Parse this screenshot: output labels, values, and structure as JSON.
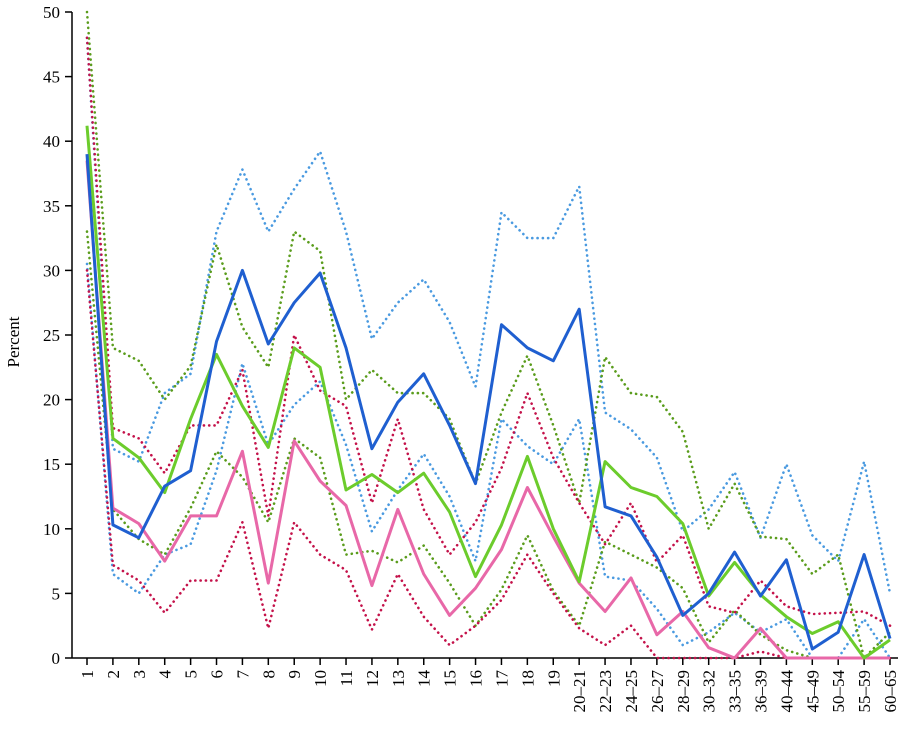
{
  "chart_data": {
    "type": "line",
    "title": "",
    "xlabel": "",
    "ylabel": "Percent",
    "ylim": [
      0,
      50
    ],
    "yticks": [
      0,
      5,
      10,
      15,
      20,
      25,
      30,
      35,
      40,
      45,
      50
    ],
    "categories": [
      "1",
      "2",
      "3",
      "4",
      "5",
      "6",
      "7",
      "8",
      "9",
      "10",
      "11",
      "12",
      "13",
      "14",
      "15",
      "16",
      "17",
      "18",
      "19",
      "20–21",
      "22–23",
      "24–25",
      "26–27",
      "28–29",
      "30–32",
      "33–35",
      "36–39",
      "40–44",
      "45–49",
      "50–54",
      "55–59",
      "60–65"
    ],
    "grid": false,
    "legend": "none",
    "series": [
      {
        "color": "#1f5fd0",
        "style": "solid",
        "values": [
          39,
          10.3,
          9.3,
          13.3,
          14.5,
          24.5,
          30,
          24.3,
          27.5,
          29.8,
          24,
          16.2,
          19.8,
          22,
          18,
          13.5,
          25.8,
          24,
          23,
          27,
          11.7,
          11,
          7.8,
          3.3,
          5,
          8.2,
          4.8,
          7.6,
          0.7,
          2,
          8,
          1.5
        ]
      },
      {
        "color": "#6ccc2c",
        "style": "solid",
        "values": [
          41.2,
          17,
          15.5,
          12.8,
          18.5,
          23.5,
          19.5,
          16.3,
          24,
          22.5,
          13,
          14.2,
          12.8,
          14.3,
          11.3,
          6.3,
          10.3,
          15.6,
          10,
          5.9,
          15.2,
          13.2,
          12.5,
          10.4,
          4.8,
          7.4,
          4.9,
          3.2,
          1.9,
          2.8,
          0,
          1.4
        ]
      },
      {
        "color": "#e868a8",
        "style": "solid",
        "values": [
          38.5,
          11.6,
          10.4,
          7.5,
          11,
          11,
          16,
          5.8,
          16.8,
          13.7,
          11.8,
          5.6,
          11.5,
          6.5,
          3.3,
          5.4,
          8.4,
          13.2,
          9.4,
          5.8,
          3.6,
          6.2,
          1.8,
          3.6,
          0.8,
          0,
          2.3,
          0,
          0,
          0,
          0,
          0
        ]
      },
      {
        "color": "#4a9ae0",
        "style": "dotted",
        "values": [
          48,
          16.2,
          15.2,
          20.5,
          22,
          33,
          37.8,
          33,
          36.3,
          39.2,
          33,
          24.7,
          27.5,
          29.3,
          26,
          21,
          34.5,
          32.5,
          32.5,
          36.5,
          19,
          17.7,
          15.5,
          9.8,
          11.5,
          14.4,
          9.3,
          15,
          9.5,
          7.5,
          15.2,
          5
        ]
      },
      {
        "color": "#4a9ae0",
        "style": "dotted",
        "values": [
          30.5,
          6.5,
          5,
          8,
          8.8,
          14.5,
          22.8,
          16.5,
          19.6,
          21.4,
          16.5,
          9.8,
          13,
          15.8,
          12.5,
          7.5,
          18.5,
          16.4,
          15,
          18.5,
          6.3,
          6,
          3.8,
          1,
          2,
          3.5,
          2,
          3,
          0,
          0,
          3,
          0
        ]
      },
      {
        "color": "#5a9c1c",
        "style": "dotted",
        "values": [
          50,
          24,
          23,
          20,
          22.6,
          32,
          25.6,
          22.5,
          33,
          31.5,
          20,
          22.3,
          20.5,
          20.5,
          18.5,
          13.5,
          19,
          23.4,
          18,
          12,
          23.3,
          20.5,
          20.2,
          17.5,
          10,
          13.5,
          9.4,
          9.2,
          6.5,
          8,
          0,
          2
        ]
      },
      {
        "color": "#5a9c1c",
        "style": "dotted",
        "values": [
          33,
          11.5,
          9.2,
          8,
          11.6,
          16,
          14,
          10.5,
          17,
          15.5,
          8,
          8.3,
          7.4,
          8.7,
          5.8,
          2.5,
          5.3,
          9.5,
          5.2,
          2.5,
          9,
          8,
          7,
          5.4,
          1.2,
          3.7,
          1.8,
          0.6,
          0,
          0,
          0,
          0
        ]
      },
      {
        "color": "#c4124a",
        "style": "dotted",
        "values": [
          48,
          17.8,
          17,
          14.3,
          18,
          18,
          22.3,
          11,
          25,
          20.7,
          19.5,
          12,
          18.5,
          11.5,
          8,
          10.5,
          14.7,
          20.5,
          15.5,
          12,
          8.8,
          12,
          7.4,
          9.5,
          4,
          3.5,
          6,
          4,
          3.4,
          3.5,
          3.6,
          2.5
        ]
      },
      {
        "color": "#c4124a",
        "style": "dotted",
        "values": [
          30,
          7.2,
          6,
          3.5,
          6,
          6,
          10.5,
          2.3,
          10.5,
          8,
          6.8,
          2.2,
          6.5,
          3.2,
          1,
          2.5,
          4.5,
          8,
          5,
          2.3,
          1,
          2.5,
          0,
          0,
          0,
          0,
          0.5,
          0,
          0,
          0,
          0,
          0
        ]
      }
    ]
  }
}
